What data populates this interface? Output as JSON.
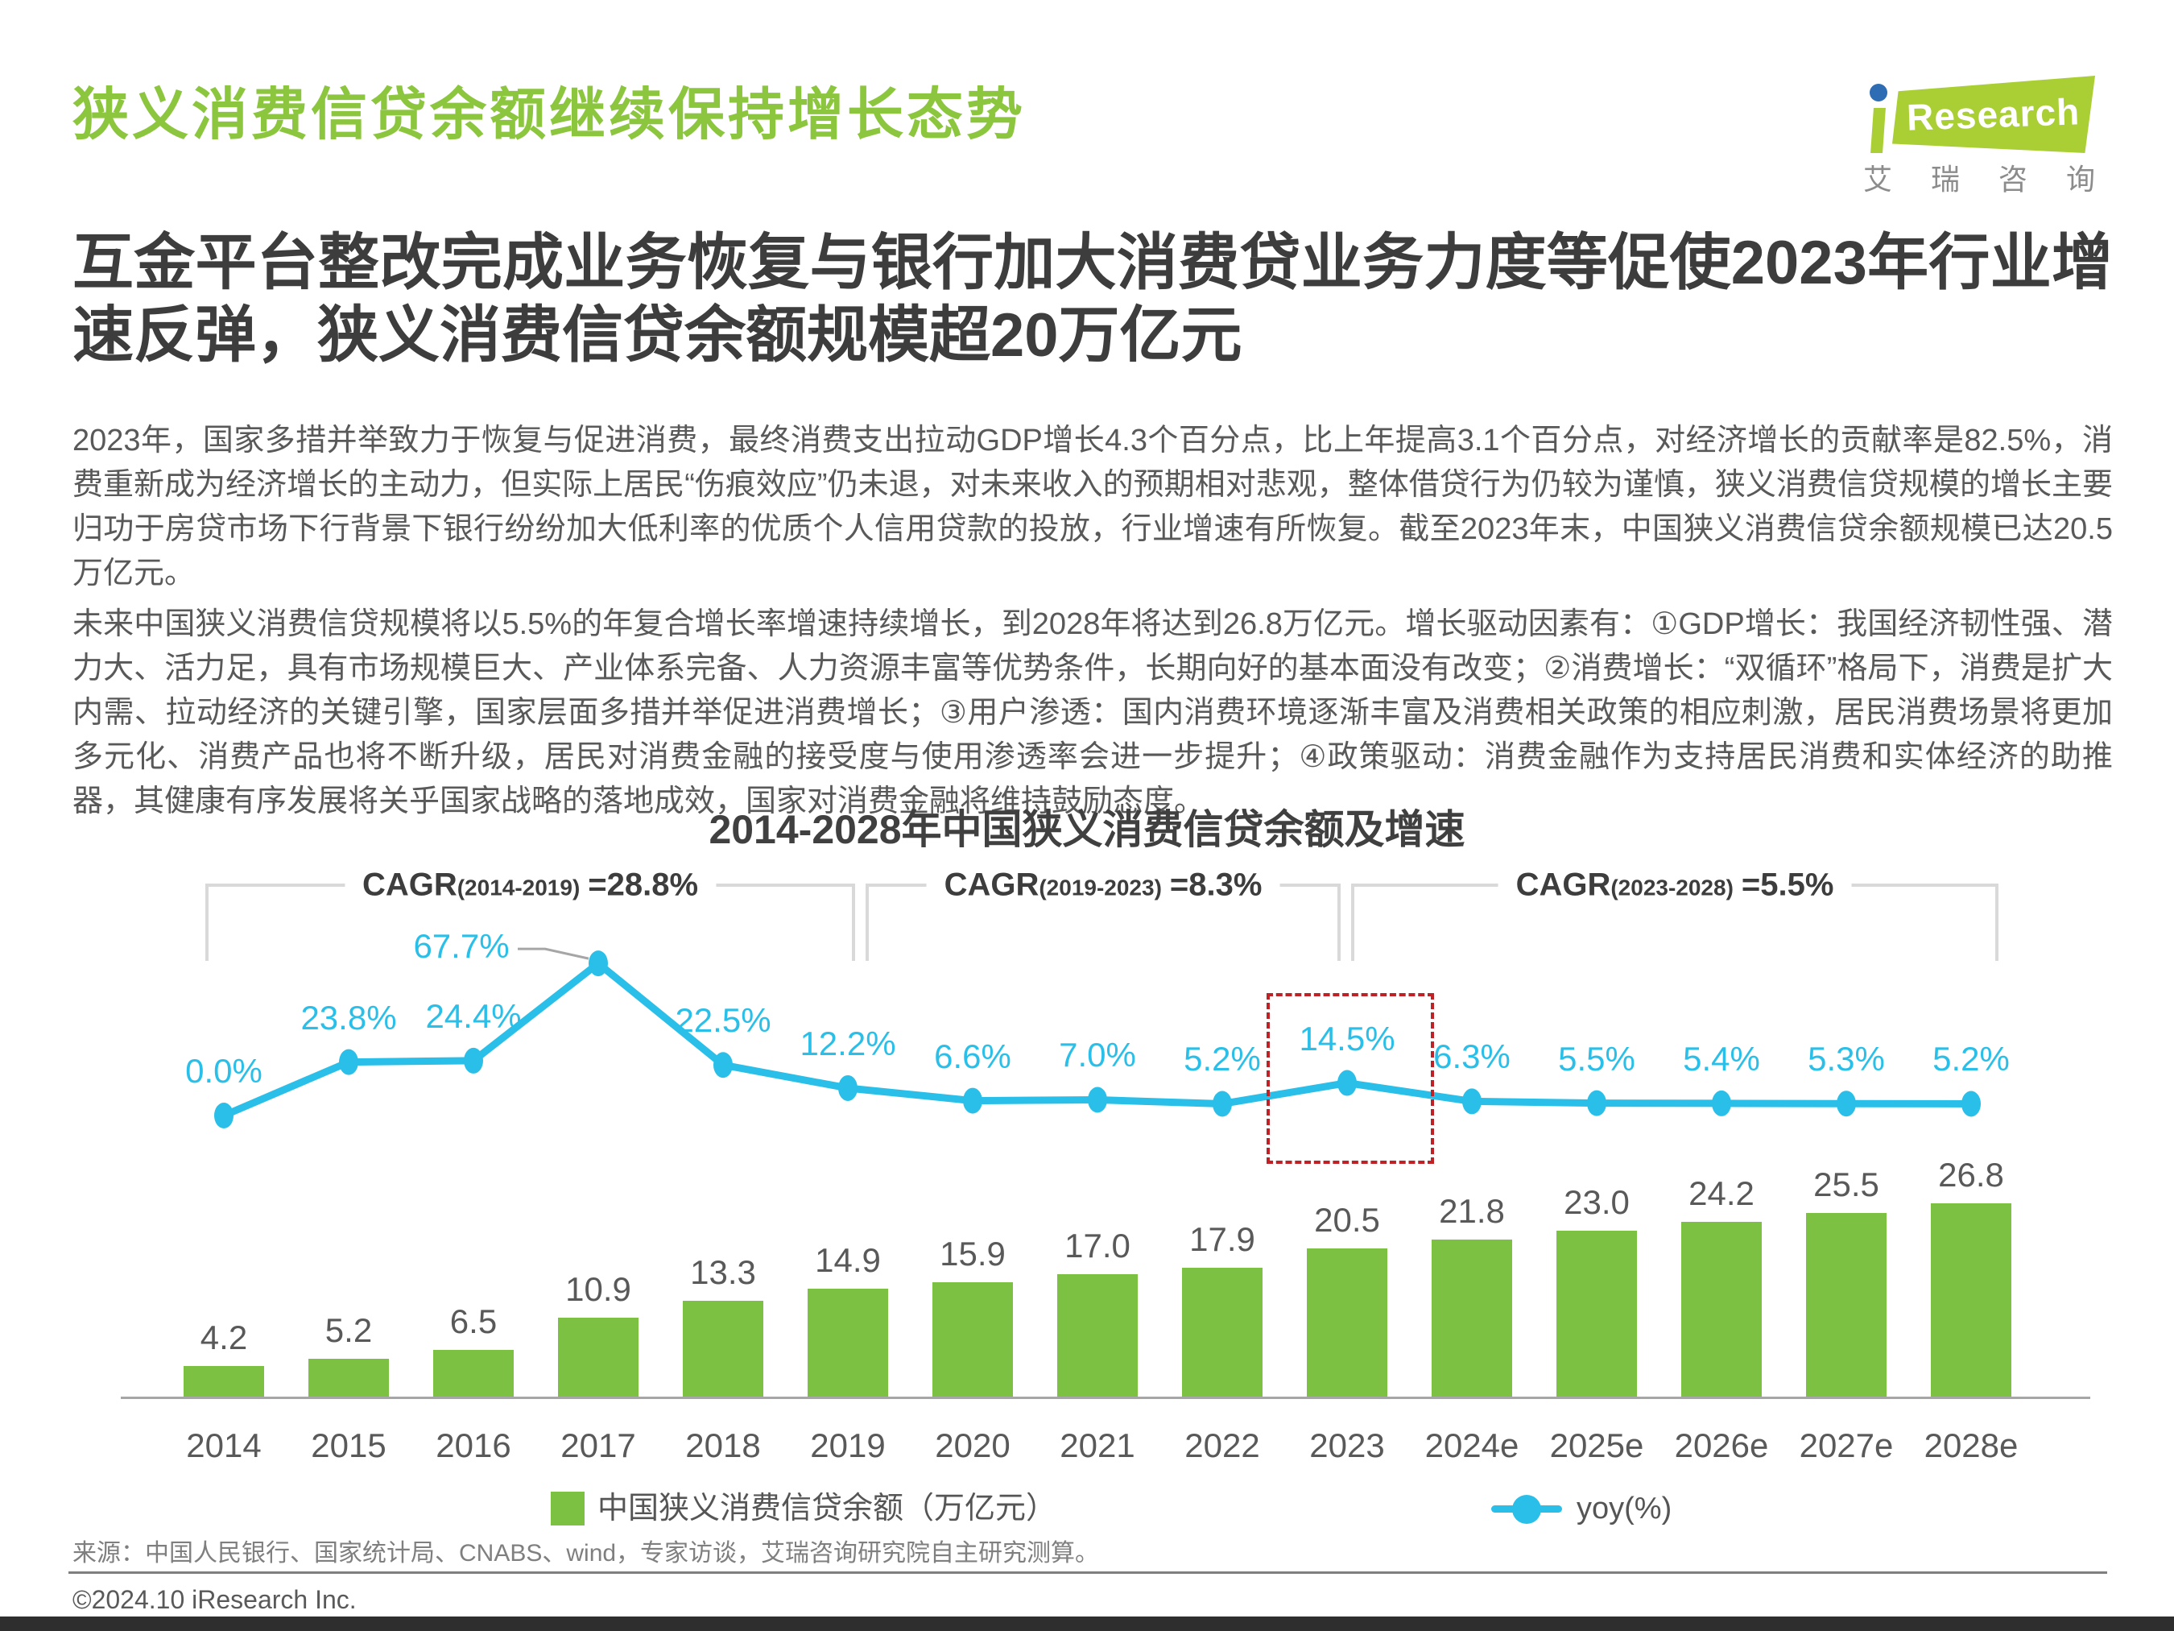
{
  "header": {
    "title": "狭义消费信贷余额继续保持增长态势",
    "logo": {
      "brand_i": "i",
      "brand_rest": "Research",
      "brand_cn": "艾瑞咨询"
    }
  },
  "subtitle": "互金平台整改完成业务恢复与银行加大消费贷业务力度等促使2023年行业增速反弹，狭义消费信贷余额规模超20万亿元",
  "paragraphs": [
    "2023年，国家多措并举致力于恢复与促进消费，最终消费支出拉动GDP增长4.3个百分点，比上年提高3.1个百分点，对经济增长的贡献率是82.5%，消费重新成为经济增长的主动力，但实际上居民“伤痕效应”仍未退，对未来收入的预期相对悲观，整体借贷行为仍较为谨慎，狭义消费信贷规模的增长主要归功于房贷市场下行背景下银行纷纷加大低利率的优质个人信用贷款的投放，行业增速有所恢复。截至2023年末，中国狭义消费信贷余额规模已达20.5万亿元。",
    "未来中国狭义消费信贷规模将以5.5%的年复合增长率增速持续增长，到2028年将达到26.8万亿元。增长驱动因素有：①GDP增长：我国经济韧性强、潜力大、活力足，具有市场规模巨大、产业体系完备、人力资源丰富等优势条件，长期向好的基本面没有改变；②消费增长：“双循环”格局下，消费是扩大内需、拉动经济的关键引擎，国家层面多措并举促进消费增长；③用户渗透：国内消费环境逐渐丰富及消费相关政策的相应刺激，居民消费场景将更加多元化、消费产品也将不断升级，居民对消费金融的接受度与使用渗透率会进一步提升；④政策驱动：消费金融作为支持居民消费和实体经济的助推器，其健康有序发展将关乎国家战略的落地成效，国家对消费金融将维持鼓励态度。"
  ],
  "chart_data": {
    "type": "bar+line",
    "title": "2014-2028年中国狭义消费信贷余额及增速",
    "categories": [
      "2014",
      "2015",
      "2016",
      "2017",
      "2018",
      "2019",
      "2020",
      "2021",
      "2022",
      "2023",
      "2024e",
      "2025e",
      "2026e",
      "2027e",
      "2028e"
    ],
    "series": [
      {
        "name": "中国狭义消费信贷余额（万亿元）",
        "type": "bar",
        "color": "#7CC142",
        "values": [
          4.2,
          5.2,
          6.5,
          10.9,
          13.3,
          14.9,
          15.9,
          17.0,
          17.9,
          20.5,
          21.8,
          23.0,
          24.2,
          25.5,
          26.8
        ],
        "labels": [
          "4.2",
          "5.2",
          "6.5",
          "10.9",
          "13.3",
          "14.9",
          "15.9",
          "17.0",
          "17.9",
          "20.5",
          "21.8",
          "23.0",
          "24.2",
          "25.5",
          "26.8"
        ]
      },
      {
        "name": "yoy(%)",
        "type": "line",
        "color": "#29BFE8",
        "values": [
          0.0,
          23.8,
          24.4,
          67.7,
          22.5,
          12.2,
          6.6,
          7.0,
          5.2,
          14.5,
          6.3,
          5.5,
          5.4,
          5.3,
          5.2
        ],
        "labels": [
          "0.0%",
          "23.8%",
          "24.4%",
          "67.7%",
          "22.5%",
          "12.2%",
          "6.6%",
          "7.0%",
          "5.2%",
          "14.5%",
          "6.3%",
          "5.5%",
          "5.4%",
          "5.3%",
          "5.2%"
        ]
      }
    ],
    "cagr": [
      {
        "name": "CAGR",
        "range": "(2014-2019)",
        "value": "=28.8%"
      },
      {
        "name": "CAGR",
        "range": "(2019-2023)",
        "value": "=8.3%"
      },
      {
        "name": "CAGR",
        "range": "(2023-2028)",
        "value": "=5.5%"
      }
    ],
    "highlight": {
      "category": "2023",
      "box_color": "#BE2126"
    },
    "ylim_bar": [
      0,
      26.8
    ],
    "ylim_line": [
      0,
      67.7
    ],
    "grid": false,
    "legend_position": "bottom"
  },
  "legend": {
    "bar_label": "中国狭义消费信贷余额（万亿元）",
    "line_label": "yoy(%)"
  },
  "source": "来源：中国人民银行、国家统计局、CNABS、wind，专家访谈，艾瑞咨询研究院自主研究测算。",
  "copyright": "©2024.10 iResearch Inc."
}
